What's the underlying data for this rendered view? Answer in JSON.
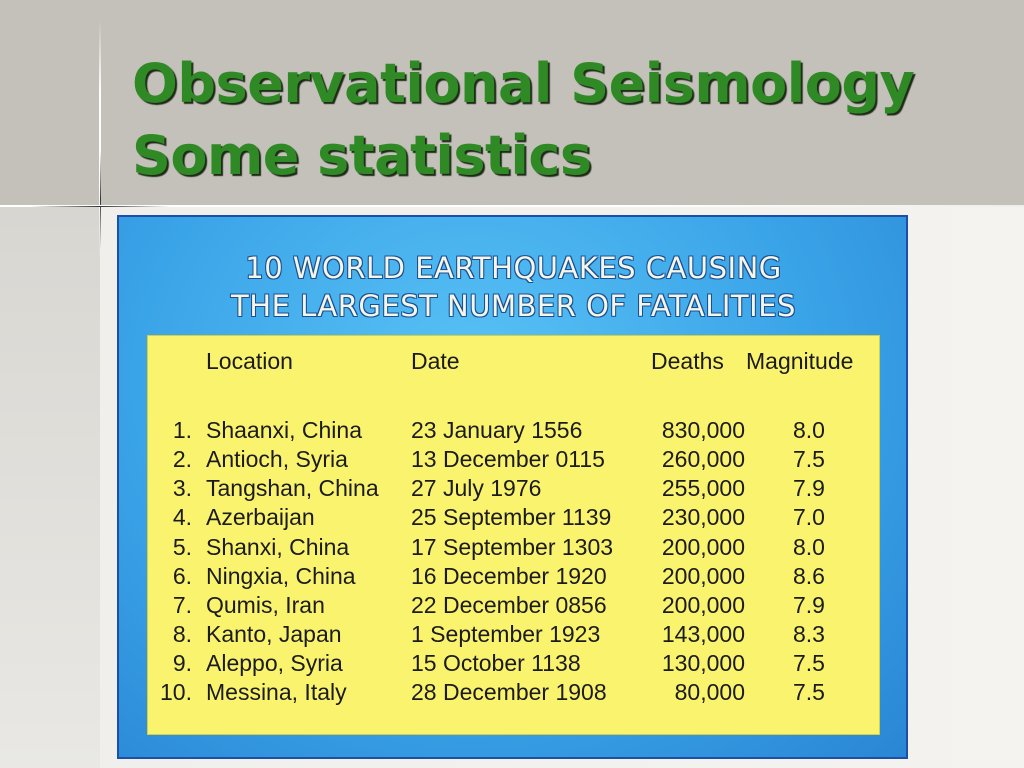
{
  "slide": {
    "title_line1": "Observational Seismology",
    "title_line2": "Some statistics"
  },
  "panel": {
    "title_line1": "10 WORLD EARTHQUAKES CAUSING",
    "title_line2": "THE LARGEST NUMBER OF FATALITIES"
  },
  "table": {
    "headers": {
      "location": "Location",
      "date": "Date",
      "deaths": "Deaths",
      "magnitude": "Magnitude"
    },
    "rows": [
      {
        "rank": "1.",
        "location": "Shaanxi, China",
        "date": "23 January 1556",
        "deaths": "830,000",
        "magnitude": "8.0"
      },
      {
        "rank": "2.",
        "location": "Antioch, Syria",
        "date": "13 December 0115",
        "deaths": "260,000",
        "magnitude": "7.5"
      },
      {
        "rank": "3.",
        "location": "Tangshan, China",
        "date": "27 July 1976",
        "deaths": "255,000",
        "magnitude": "7.9"
      },
      {
        "rank": "4.",
        "location": "Azerbaijan",
        "date": "25 September 1139",
        "deaths": "230,000",
        "magnitude": "7.0"
      },
      {
        "rank": "5.",
        "location": "Shanxi, China",
        "date": "17 September 1303",
        "deaths": "200,000",
        "magnitude": "8.0"
      },
      {
        "rank": "6.",
        "location": "Ningxia, China",
        "date": "16 December 1920",
        "deaths": "200,000",
        "magnitude": "8.6"
      },
      {
        "rank": "7.",
        "location": "Qumis, Iran",
        "date": "22 December 0856",
        "deaths": "200,000",
        "magnitude": "7.9"
      },
      {
        "rank": "8.",
        "location": "Kanto, Japan",
        "date": "1 September 1923",
        "deaths": "143,000",
        "magnitude": "8.3"
      },
      {
        "rank": "9.",
        "location": "Aleppo, Syria",
        "date": "15 October 1138",
        "deaths": "130,000",
        "magnitude": "7.5"
      },
      {
        "rank": "10.",
        "location": "Messina, Italy",
        "date": "28 December 1908",
        "deaths": "80,000",
        "magnitude": "7.5"
      }
    ]
  },
  "colors": {
    "title_green": "#2f8a25",
    "panel_blue": "#3aa4e8",
    "table_yellow": "#faf36e"
  }
}
